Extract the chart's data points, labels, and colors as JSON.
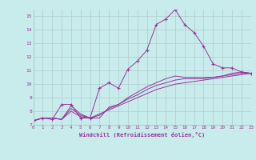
{
  "xlabel": "Windchill (Refroidissement éolien,°C)",
  "ylabel": "",
  "background_color": "#c8ecec",
  "line_color": "#993399",
  "grid_color": "#b0cccc",
  "xmin": 0,
  "xmax": 23,
  "ymin": 7,
  "ymax": 15.5,
  "yticks": [
    7,
    8,
    9,
    10,
    11,
    12,
    13,
    14,
    15
  ],
  "xticks": [
    0,
    1,
    2,
    3,
    4,
    5,
    6,
    7,
    8,
    9,
    10,
    11,
    12,
    13,
    14,
    15,
    16,
    17,
    18,
    19,
    20,
    21,
    22,
    23
  ],
  "series": [
    [
      7.3,
      7.5,
      7.4,
      8.5,
      8.5,
      7.5,
      7.5,
      9.7,
      10.1,
      9.7,
      11.1,
      11.7,
      12.5,
      14.4,
      14.8,
      15.5,
      14.4,
      13.8,
      12.8,
      11.5,
      11.2,
      11.2,
      10.9,
      10.8
    ],
    [
      7.3,
      7.5,
      7.5,
      7.4,
      8.4,
      7.8,
      7.5,
      7.5,
      8.3,
      8.5,
      9.0,
      9.4,
      9.8,
      10.1,
      10.4,
      10.6,
      10.5,
      10.5,
      10.5,
      10.5,
      10.6,
      10.8,
      10.9,
      10.8
    ],
    [
      7.3,
      7.5,
      7.5,
      7.4,
      8.2,
      7.7,
      7.5,
      7.7,
      8.2,
      8.5,
      8.9,
      9.2,
      9.6,
      9.9,
      10.1,
      10.3,
      10.4,
      10.4,
      10.4,
      10.5,
      10.6,
      10.7,
      10.8,
      10.8
    ],
    [
      7.3,
      7.5,
      7.5,
      7.4,
      8.0,
      7.6,
      7.5,
      7.8,
      8.1,
      8.4,
      8.7,
      9.0,
      9.3,
      9.6,
      9.8,
      10.0,
      10.1,
      10.2,
      10.3,
      10.4,
      10.5,
      10.6,
      10.7,
      10.8
    ]
  ]
}
